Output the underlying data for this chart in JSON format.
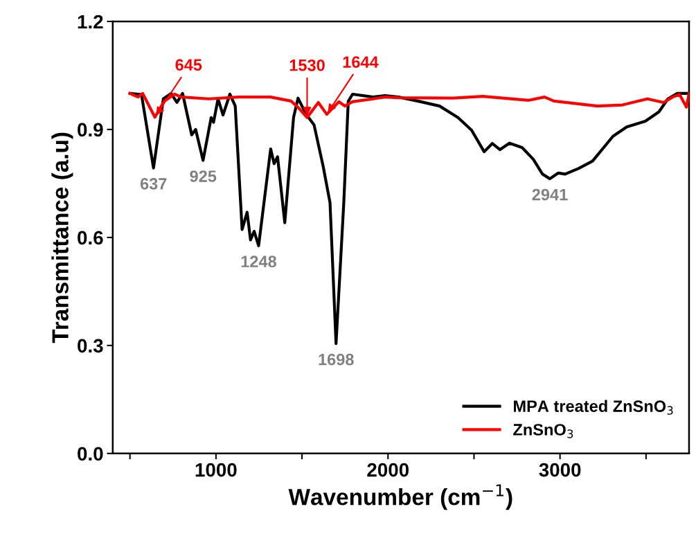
{
  "chart_data": {
    "type": "line",
    "xlabel": "Wavenumber (cm$^{−1}$)",
    "ylabel": "Transmittance (a.u)",
    "xlim": [
      400,
      3750
    ],
    "xticks": [
      {
        "value": 500,
        "label": null
      },
      1000,
      {
        "value": 1500,
        "label": null
      },
      2000,
      {
        "value": 2500,
        "label": null
      },
      3000,
      {
        "value": 3500,
        "label": null
      }
    ],
    "ylim": [
      0.0,
      1.2
    ],
    "yticks": [
      {
        "value": 0,
        "label": "0.0"
      },
      0.3,
      0.6,
      0.9,
      1.2
    ],
    "grid": false,
    "legend": "bottom right",
    "marker": "none",
    "line_style": "solid",
    "series": [
      {
        "name": "MPA treated ZnSnO$_{3}$",
        "color": "#000000",
        "x": [
          500,
          567,
          637,
          694,
          739,
          773,
          806,
          859,
          882,
          925,
          972,
          986,
          1012,
          1041,
          1081,
          1112,
          1152,
          1181,
          1201,
          1222,
          1248,
          1318,
          1338,
          1358,
          1400,
          1451,
          1477,
          1524,
          1570,
          1623,
          1663,
          1698,
          1743,
          1769,
          1794,
          1914,
          1982,
          2061,
          2181,
          2300,
          2407,
          2486,
          2559,
          2606,
          2651,
          2706,
          2779,
          2845,
          2898,
          2941,
          2990,
          3030,
          3109,
          3189,
          3308,
          3388,
          3496,
          3575,
          3627,
          3682,
          3750
        ],
        "values": [
          1.0,
          0.997,
          0.793,
          0.985,
          1.0,
          0.975,
          1.0,
          0.885,
          0.9,
          0.814,
          0.933,
          0.92,
          0.985,
          0.94,
          0.998,
          0.965,
          0.622,
          0.67,
          0.593,
          0.617,
          0.577,
          0.846,
          0.805,
          0.824,
          0.641,
          0.933,
          0.987,
          0.942,
          0.913,
          0.798,
          0.696,
          0.305,
          0.696,
          0.978,
          0.998,
          0.99,
          0.994,
          0.99,
          0.978,
          0.965,
          0.933,
          0.898,
          0.838,
          0.861,
          0.844,
          0.862,
          0.85,
          0.817,
          0.776,
          0.763,
          0.779,
          0.776,
          0.792,
          0.812,
          0.881,
          0.907,
          0.923,
          0.949,
          0.985,
          1.0,
          1.0
        ]
      },
      {
        "name": "ZnSnO$_{3}$",
        "color": "#ff0000",
        "x": [
          500,
          547,
          574,
          645,
          699,
          759,
          800,
          959,
          1132,
          1317,
          1436,
          1476,
          1530,
          1595,
          1644,
          1715,
          1749,
          1794,
          1914,
          1982,
          2061,
          2380,
          2551,
          2818,
          2910,
          2964,
          3217,
          3363,
          3508,
          3602,
          3655,
          3695,
          3735,
          3750
        ],
        "values": [
          1.0,
          0.99,
          1.0,
          0.934,
          0.978,
          0.998,
          0.99,
          0.985,
          0.99,
          0.99,
          0.979,
          0.962,
          0.933,
          0.975,
          0.942,
          0.977,
          0.965,
          0.977,
          0.985,
          0.99,
          0.988,
          0.987,
          0.992,
          0.981,
          0.99,
          0.979,
          0.965,
          0.968,
          0.985,
          0.975,
          0.99,
          0.997,
          0.962,
          1.0
        ]
      }
    ],
    "annotations": [
      {
        "text": "637",
        "x": 637,
        "y": 0.793
      },
      {
        "text": "925",
        "x": 925,
        "y": 0.814
      },
      {
        "text": "1248",
        "x": 1248,
        "y": 0.577
      },
      {
        "text": "1698",
        "x": 1698,
        "y": 0.305
      },
      {
        "text": "2941",
        "x": 2941,
        "y": 0.763
      },
      {
        "text": "645",
        "x": 645,
        "y": 0.934
      },
      {
        "text": "1530",
        "x": 1530,
        "y": 0.933
      },
      {
        "text": "1644",
        "x": 1644,
        "y": 0.942
      }
    ]
  }
}
